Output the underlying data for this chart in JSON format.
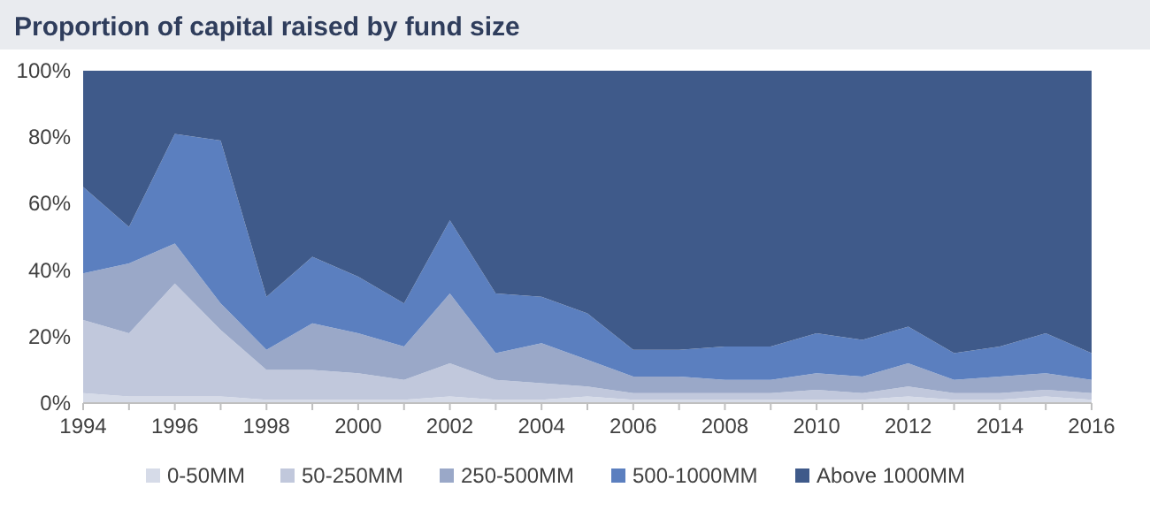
{
  "chart_data": {
    "type": "area",
    "stacked": true,
    "title": "Proportion of capital raised by fund size",
    "x": [
      1994,
      1995,
      1996,
      1997,
      1998,
      1999,
      2000,
      2001,
      2002,
      2003,
      2004,
      2005,
      2006,
      2007,
      2008,
      2009,
      2010,
      2011,
      2012,
      2013,
      2014,
      2015,
      2016
    ],
    "series": [
      {
        "name": "0-50MM",
        "color": "#d6dbe8",
        "values": [
          3,
          2,
          2,
          2,
          1,
          1,
          1,
          1,
          2,
          1,
          1,
          2,
          1,
          1,
          1,
          1,
          1,
          1,
          2,
          1,
          1,
          2,
          1
        ]
      },
      {
        "name": "50-250MM",
        "color": "#c1c8dc",
        "values": [
          22,
          19,
          34,
          20,
          9,
          9,
          8,
          6,
          10,
          6,
          5,
          3,
          2,
          2,
          2,
          2,
          3,
          2,
          3,
          2,
          2,
          2,
          2
        ]
      },
      {
        "name": "250-500MM",
        "color": "#9aa8c8",
        "values": [
          14,
          21,
          12,
          8,
          6,
          14,
          12,
          10,
          21,
          8,
          12,
          8,
          5,
          5,
          4,
          4,
          5,
          5,
          7,
          4,
          5,
          5,
          4
        ]
      },
      {
        "name": "500-1000MM",
        "color": "#5b7fbf",
        "values": [
          26,
          11,
          33,
          49,
          16,
          20,
          17,
          13,
          22,
          18,
          14,
          14,
          8,
          8,
          10,
          10,
          12,
          11,
          11,
          8,
          9,
          12,
          8
        ]
      },
      {
        "name": "Above 1000MM",
        "color": "#3f5a8a",
        "values": [
          35,
          47,
          19,
          21,
          68,
          56,
          62,
          70,
          45,
          67,
          68,
          73,
          84,
          84,
          83,
          83,
          79,
          81,
          77,
          85,
          83,
          79,
          85
        ]
      }
    ],
    "xlim": [
      1994,
      2016
    ],
    "xticks": [
      1994,
      1996,
      1998,
      2000,
      2002,
      2004,
      2006,
      2008,
      2010,
      2012,
      2014,
      2016
    ],
    "ylim": [
      0,
      100
    ],
    "yticks": [
      {
        "value": 0,
        "label": "0%"
      },
      {
        "value": 20,
        "label": "20%"
      },
      {
        "value": 40,
        "label": "40%"
      },
      {
        "value": 60,
        "label": "60%"
      },
      {
        "value": 80,
        "label": "80%"
      },
      {
        "value": 100,
        "label": "100%"
      }
    ],
    "grid": false,
    "legend": "bottom"
  }
}
